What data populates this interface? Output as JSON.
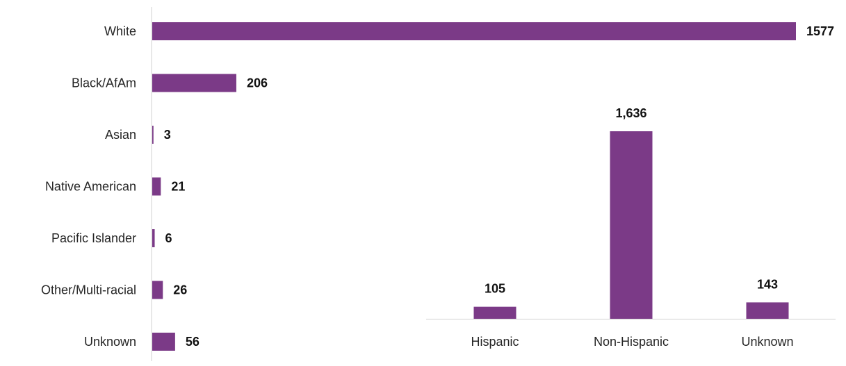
{
  "chart_data": [
    {
      "type": "bar",
      "orientation": "horizontal",
      "title": "",
      "xlabel": "",
      "ylabel": "",
      "categories": [
        "White",
        "Black/AfAm",
        "Asian",
        "Native American",
        "Pacific Islander",
        "Other/Multi-racial",
        "Unknown"
      ],
      "values": [
        1577,
        206,
        3,
        21,
        6,
        26,
        56
      ],
      "value_labels": [
        "1577",
        "206",
        "3",
        "21",
        "6",
        "26",
        "56"
      ],
      "xlim": [
        0,
        1577
      ],
      "grid": false,
      "legend": "none",
      "bar_color": "#7b3a87"
    },
    {
      "type": "bar",
      "orientation": "vertical",
      "title": "",
      "xlabel": "",
      "ylabel": "",
      "categories": [
        "Hispanic",
        "Non-Hispanic",
        "Unknown"
      ],
      "values": [
        105,
        1636,
        143
      ],
      "value_labels": [
        "105",
        "1,636",
        "143"
      ],
      "ylim": [
        0,
        1636
      ],
      "grid": false,
      "legend": "none",
      "bar_color": "#7b3a87"
    }
  ]
}
